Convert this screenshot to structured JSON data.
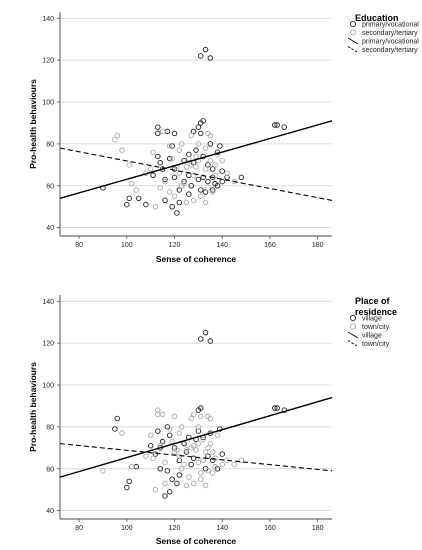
{
  "chart_data": [
    {
      "type": "scatter",
      "xlabel": "Sense of coherence",
      "ylabel": "Pro-health behaviours",
      "xlim": [
        72,
        186
      ],
      "ylim": [
        36,
        143
      ],
      "x_ticks": [
        80,
        100,
        120,
        140,
        160,
        180
      ],
      "y_ticks": [
        40,
        60,
        80,
        100,
        120,
        140
      ],
      "grid": "horizontal",
      "legend": {
        "title": "Education",
        "position": "right",
        "entries": [
          {
            "label": "primary/vocational",
            "kind": "marker",
            "color": "#222222"
          },
          {
            "label": "secondary/tertiary",
            "kind": "marker",
            "color": "#aaaaaa"
          },
          {
            "label": "primary/vocational",
            "kind": "line-solid",
            "color": "#000000"
          },
          {
            "label": "secondary/tertiary",
            "kind": "line-dashed",
            "color": "#000000"
          }
        ]
      },
      "series": [
        {
          "name": "primary/vocational",
          "color": "#222222",
          "points": [
            [
              90,
              59
            ],
            [
              100,
              51
            ],
            [
              101,
              54
            ],
            [
              105,
              54
            ],
            [
              108,
              51
            ],
            [
              111,
              65
            ],
            [
              113,
              74
            ],
            [
              113,
              88
            ],
            [
              113,
              85
            ],
            [
              114,
              71
            ],
            [
              115,
              68
            ],
            [
              116,
              63
            ],
            [
              116,
              53
            ],
            [
              117,
              86
            ],
            [
              118,
              73
            ],
            [
              119,
              79
            ],
            [
              119,
              50
            ],
            [
              120,
              68
            ],
            [
              120,
              64
            ],
            [
              120,
              85
            ],
            [
              121,
              47
            ],
            [
              122,
              58
            ],
            [
              122,
              52
            ],
            [
              124,
              62
            ],
            [
              124,
              72
            ],
            [
              126,
              56
            ],
            [
              126,
              65
            ],
            [
              126,
              75
            ],
            [
              127,
              60
            ],
            [
              128,
              86
            ],
            [
              128,
              71
            ],
            [
              129,
              77
            ],
            [
              130,
              88
            ],
            [
              130,
              63
            ],
            [
              131,
              58
            ],
            [
              131,
              85
            ],
            [
              131,
              122
            ],
            [
              131,
              90
            ],
            [
              132,
              64
            ],
            [
              132,
              74
            ],
            [
              132,
              91
            ],
            [
              133,
              125
            ],
            [
              133,
              57
            ],
            [
              134,
              62
            ],
            [
              134,
              70
            ],
            [
              135,
              121
            ],
            [
              135,
              80
            ],
            [
              136,
              64
            ],
            [
              136,
              68
            ],
            [
              136,
              58
            ],
            [
              137,
              61
            ],
            [
              138,
              76
            ],
            [
              138,
              60
            ],
            [
              139,
              79
            ],
            [
              140,
              67
            ],
            [
              140,
              62
            ],
            [
              142,
              64
            ],
            [
              148,
              64
            ],
            [
              162,
              89
            ],
            [
              163,
              89
            ],
            [
              166,
              88
            ]
          ]
        },
        {
          "name": "secondary/tertiary",
          "color": "#aaaaaa",
          "points": [
            [
              95,
              82
            ],
            [
              96,
              84
            ],
            [
              98,
              77
            ],
            [
              101,
              70
            ],
            [
              102,
              61
            ],
            [
              104,
              58
            ],
            [
              108,
              66
            ],
            [
              110,
              68
            ],
            [
              111,
              76
            ],
            [
              112,
              50
            ],
            [
              114,
              59
            ],
            [
              115,
              86
            ],
            [
              116,
              62
            ],
            [
              118,
              79
            ],
            [
              118,
              57
            ],
            [
              119,
              73
            ],
            [
              120,
              55
            ],
            [
              121,
              69
            ],
            [
              122,
              66
            ],
            [
              122,
              77
            ],
            [
              123,
              80
            ],
            [
              123,
              60
            ],
            [
              124,
              61
            ],
            [
              125,
              69
            ],
            [
              125,
              52
            ],
            [
              126,
              73
            ],
            [
              127,
              84
            ],
            [
              127,
              70
            ],
            [
              128,
              65
            ],
            [
              128,
              53
            ],
            [
              129,
              69
            ],
            [
              129,
              74
            ],
            [
              130,
              72
            ],
            [
              130,
              80
            ],
            [
              131,
              55
            ],
            [
              133,
              68
            ],
            [
              133,
              78
            ],
            [
              133,
              52
            ],
            [
              134,
              59
            ],
            [
              134,
              85
            ],
            [
              135,
              72
            ],
            [
              135,
              84
            ],
            [
              136,
              57
            ],
            [
              137,
              65
            ],
            [
              137,
              70
            ],
            [
              138,
              75
            ],
            [
              140,
              72
            ],
            [
              142,
              66
            ],
            [
              145,
              62
            ]
          ]
        }
      ],
      "fit_lines": [
        {
          "name": "primary/vocational",
          "style": "solid",
          "x": [
            72,
            186
          ],
          "y": [
            54,
            91
          ]
        },
        {
          "name": "secondary/tertiary",
          "style": "dashed",
          "x": [
            72,
            186
          ],
          "y": [
            78,
            53
          ]
        }
      ]
    },
    {
      "type": "scatter",
      "xlabel": "Sense of coherence",
      "ylabel": "Pro-health behaviours",
      "xlim": [
        72,
        186
      ],
      "ylim": [
        36,
        143
      ],
      "x_ticks": [
        80,
        100,
        120,
        140,
        160,
        180
      ],
      "y_ticks": [
        40,
        60,
        80,
        100,
        120,
        140
      ],
      "grid": "horizontal",
      "legend": {
        "title_lines": [
          "Place of",
          "residence"
        ],
        "position": "right",
        "entries": [
          {
            "label": "village",
            "kind": "marker",
            "color": "#222222"
          },
          {
            "label": "town/city",
            "kind": "marker",
            "color": "#aaaaaa"
          },
          {
            "label": "village",
            "kind": "line-solid",
            "color": "#000000"
          },
          {
            "label": "town/city",
            "kind": "line-dashed",
            "color": "#000000"
          }
        ]
      },
      "series": [
        {
          "name": "village",
          "color": "#222222",
          "points": [
            [
              95,
              79
            ],
            [
              96,
              84
            ],
            [
              100,
              51
            ],
            [
              101,
              54
            ],
            [
              104,
              61
            ],
            [
              110,
              71
            ],
            [
              112,
              67
            ],
            [
              113,
              78
            ],
            [
              114,
              60
            ],
            [
              114,
              70
            ],
            [
              115,
              73
            ],
            [
              116,
              47
            ],
            [
              117,
              80
            ],
            [
              117,
              59
            ],
            [
              118,
              49
            ],
            [
              118,
              76
            ],
            [
              119,
              55
            ],
            [
              120,
              70
            ],
            [
              121,
              53
            ],
            [
              122,
              64
            ],
            [
              122,
              57
            ],
            [
              124,
              72
            ],
            [
              125,
              68
            ],
            [
              126,
              75
            ],
            [
              127,
              62
            ],
            [
              128,
              65
            ],
            [
              129,
              74
            ],
            [
              130,
              78
            ],
            [
              130,
              88
            ],
            [
              131,
              122
            ],
            [
              131,
              89
            ],
            [
              132,
              75
            ],
            [
              133,
              125
            ],
            [
              133,
              60
            ],
            [
              134,
              66
            ],
            [
              135,
              121
            ],
            [
              135,
              77
            ],
            [
              136,
              64
            ],
            [
              138,
              60
            ],
            [
              139,
              79
            ],
            [
              140,
              67
            ],
            [
              162,
              89
            ],
            [
              163,
              89
            ],
            [
              166,
              88
            ]
          ]
        },
        {
          "name": "town/city",
          "color": "#aaaaaa",
          "points": [
            [
              90,
              59
            ],
            [
              98,
              77
            ],
            [
              102,
              61
            ],
            [
              108,
              66
            ],
            [
              110,
              76
            ],
            [
              111,
              65
            ],
            [
              112,
              50
            ],
            [
              113,
              86
            ],
            [
              113,
              88
            ],
            [
              114,
              71
            ],
            [
              115,
              86
            ],
            [
              116,
              63
            ],
            [
              116,
              53
            ],
            [
              118,
              79
            ],
            [
              119,
              73
            ],
            [
              120,
              85
            ],
            [
              120,
              68
            ],
            [
              121,
              69
            ],
            [
              122,
              66
            ],
            [
              122,
              77
            ],
            [
              123,
              80
            ],
            [
              123,
              60
            ],
            [
              124,
              62
            ],
            [
              125,
              69
            ],
            [
              125,
              52
            ],
            [
              126,
              56
            ],
            [
              127,
              84
            ],
            [
              127,
              70
            ],
            [
              128,
              86
            ],
            [
              128,
              71
            ],
            [
              128,
              53
            ],
            [
              129,
              69
            ],
            [
              130,
              72
            ],
            [
              130,
              80
            ],
            [
              130,
              63
            ],
            [
              131,
              58
            ],
            [
              131,
              85
            ],
            [
              131,
              55
            ],
            [
              132,
              64
            ],
            [
              132,
              74
            ],
            [
              133,
              68
            ],
            [
              133,
              52
            ],
            [
              134,
              59
            ],
            [
              134,
              85
            ],
            [
              134,
              70
            ],
            [
              135,
              72
            ],
            [
              135,
              84
            ],
            [
              136,
              58
            ],
            [
              136,
              68
            ],
            [
              137,
              61
            ],
            [
              137,
              65
            ],
            [
              138,
              76
            ],
            [
              140,
              62
            ],
            [
              142,
              64
            ],
            [
              145,
              62
            ],
            [
              148,
              64
            ]
          ]
        }
      ],
      "fit_lines": [
        {
          "name": "village",
          "style": "solid",
          "x": [
            72,
            186
          ],
          "y": [
            56,
            94
          ]
        },
        {
          "name": "town/city",
          "style": "dashed",
          "x": [
            72,
            186
          ],
          "y": [
            72,
            59
          ]
        }
      ]
    }
  ]
}
